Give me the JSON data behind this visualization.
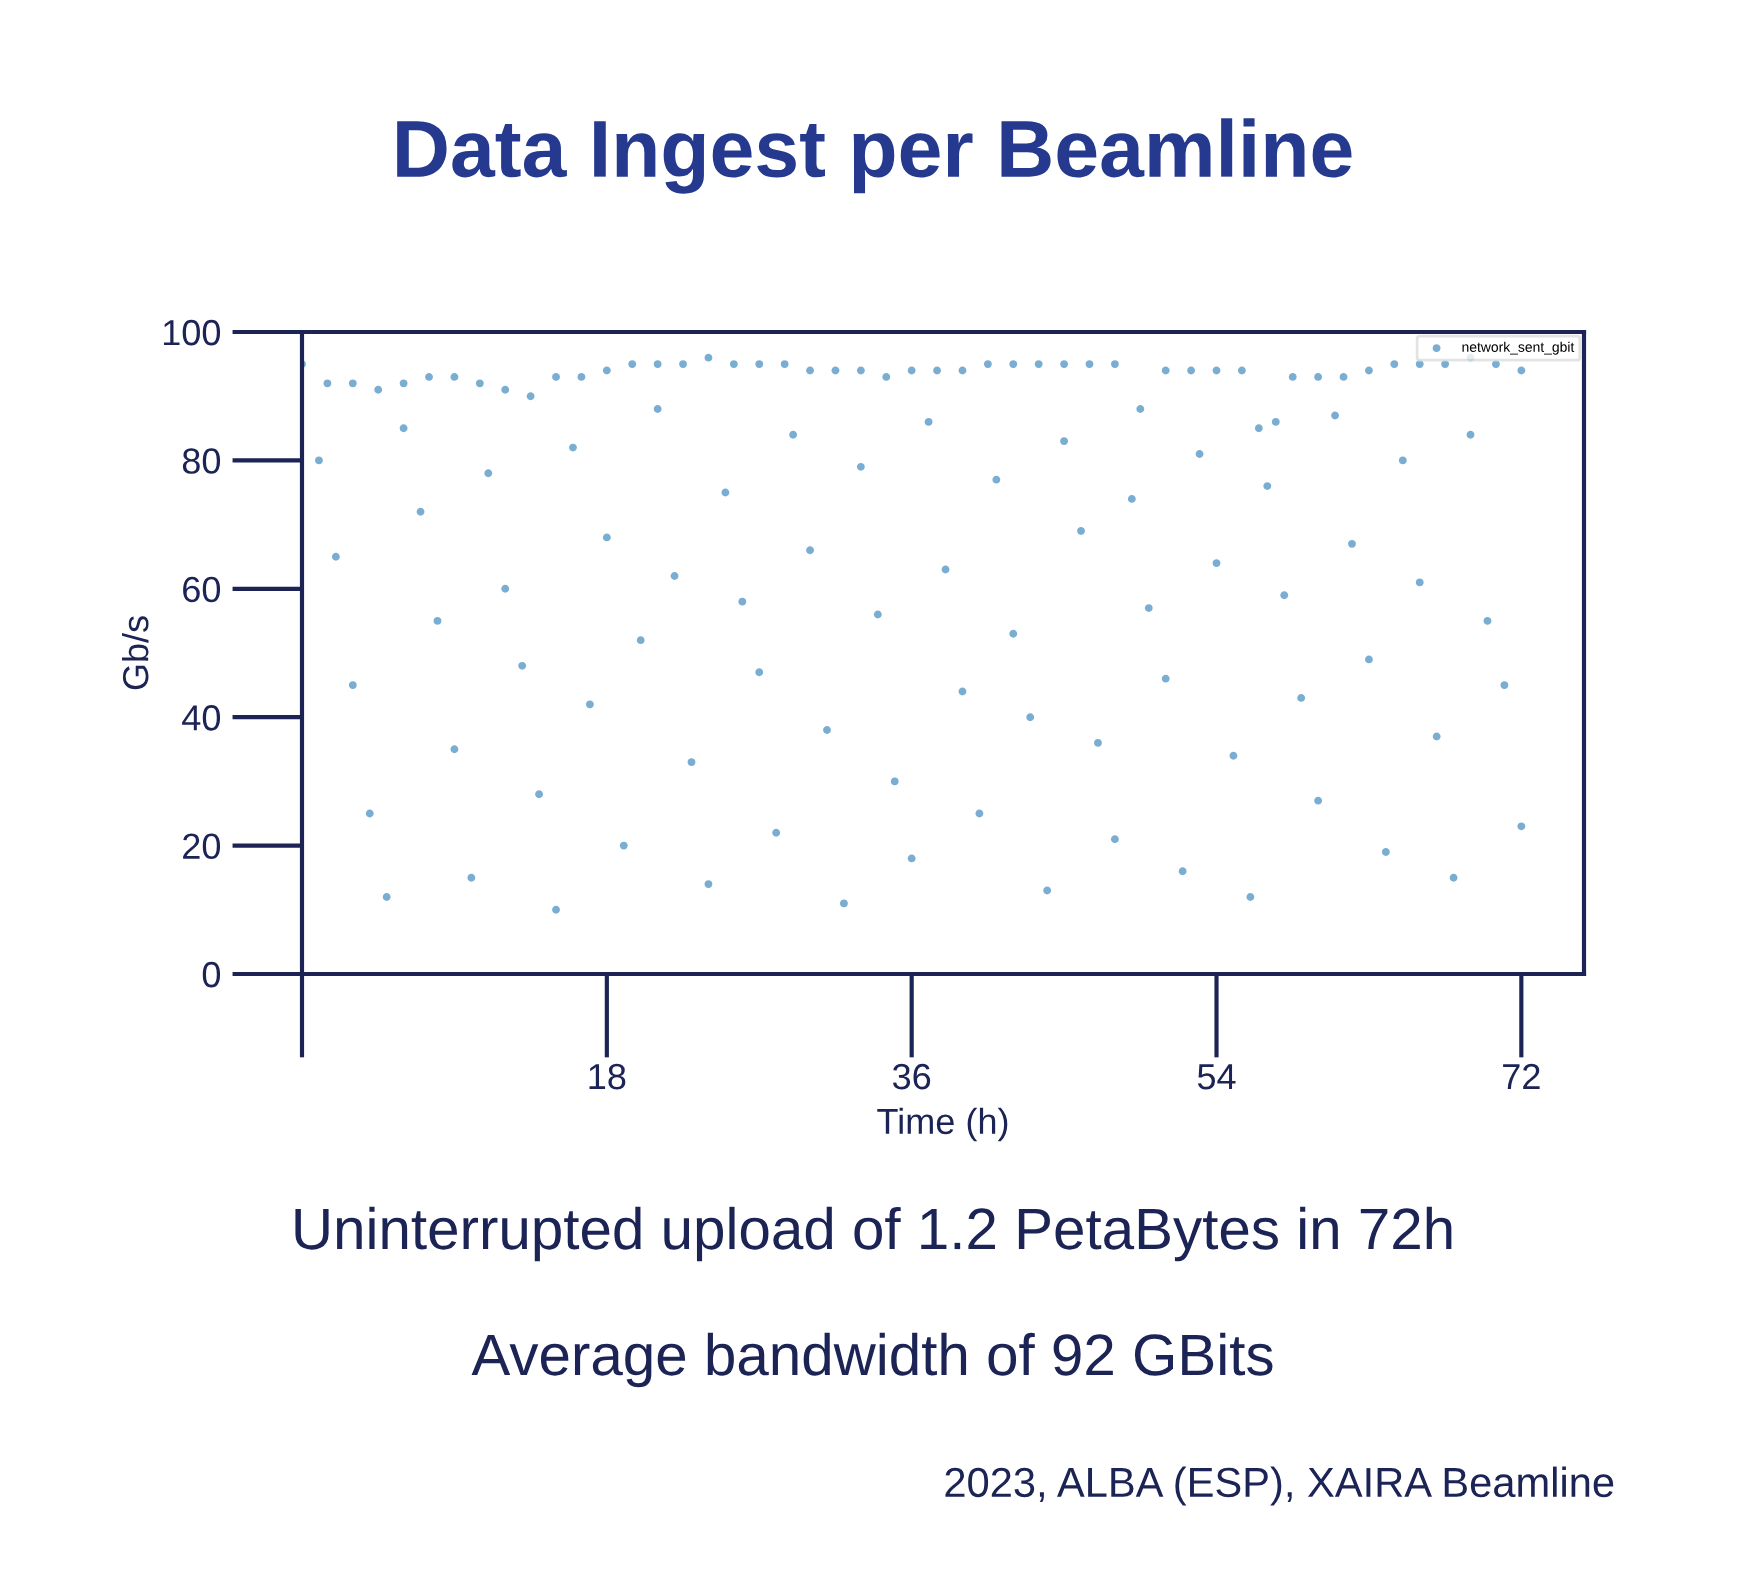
{
  "chart_data": {
    "type": "scatter",
    "title": "Data Ingest per Beamline",
    "xlabel": "Time (h)",
    "ylabel": "Gb/s",
    "xlim": [
      0,
      75.7
    ],
    "xticks": [
      {
        "value": 0,
        "label": null
      },
      18,
      36,
      54,
      72
    ],
    "ylim": [
      0,
      100
    ],
    "yticks": [
      0,
      20,
      40,
      60,
      80,
      100
    ],
    "grid": false,
    "legend": "top right",
    "marker": "circle",
    "annotations": [
      "Uninterrupted upload of 1.2 PetaBytes in 72h",
      "Average bandwidth of 92 GBits",
      "2023, ALBA (ESP), XAIRA Beamline"
    ],
    "series": [
      {
        "name": "network_sent_gbit",
        "color": "#1f77b4",
        "x": [
          0,
          1.5,
          3,
          4.5,
          6,
          7.5,
          9,
          10.5,
          12,
          13.5,
          15,
          16.5,
          18,
          19.5,
          21,
          22.5,
          24,
          25.5,
          27,
          28.5,
          30,
          31.5,
          33,
          34.5,
          36,
          37.5,
          39,
          40.5,
          42,
          43.5,
          45,
          46.5,
          48,
          49.5,
          51,
          52.5,
          54,
          55.5,
          56.5,
          57.5,
          58.5,
          60,
          61.5,
          63,
          64.5,
          66,
          67.5,
          69,
          70.5,
          72,
          1,
          2,
          3,
          4,
          5,
          6,
          7,
          8,
          9,
          10,
          11,
          12,
          13,
          14,
          15,
          16,
          17,
          18,
          19,
          20,
          21,
          22,
          23,
          24,
          25,
          26,
          27,
          28,
          29,
          30,
          31,
          32,
          33,
          34,
          35,
          36,
          37,
          38,
          39,
          40,
          41,
          42,
          43,
          44,
          45,
          46,
          47,
          48,
          49,
          50,
          51,
          52,
          53,
          54,
          55,
          56,
          57,
          58,
          59,
          60,
          61,
          62,
          63,
          64,
          65,
          66,
          67,
          68,
          69,
          70,
          71,
          72
        ],
        "values": [
          95,
          92,
          92,
          91,
          92,
          93,
          93,
          92,
          91,
          90,
          93,
          93,
          94,
          95,
          95,
          95,
          96,
          95,
          95,
          95,
          94,
          94,
          94,
          93,
          94,
          94,
          94,
          95,
          95,
          95,
          95,
          95,
          95,
          88,
          94,
          94,
          94,
          94,
          85,
          86,
          93,
          93,
          93,
          94,
          95,
          95,
          95,
          96,
          95,
          94,
          80,
          65,
          45,
          25,
          12,
          85,
          72,
          55,
          35,
          15,
          78,
          60,
          48,
          28,
          10,
          82,
          42,
          68,
          20,
          52,
          88,
          62,
          33,
          14,
          75,
          58,
          47,
          22,
          84,
          66,
          38,
          11,
          79,
          56,
          30,
          18,
          86,
          63,
          44,
          25,
          77,
          53,
          40,
          13,
          83,
          69,
          36,
          21,
          74,
          57,
          46,
          16,
          81,
          64,
          34,
          12,
          76,
          59,
          43,
          27,
          87,
          67,
          49,
          19,
          80,
          61,
          37,
          15,
          84,
          55,
          45,
          23
        ]
      }
    ]
  }
}
